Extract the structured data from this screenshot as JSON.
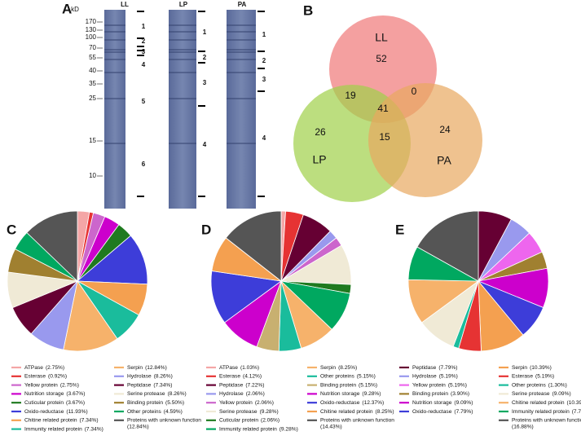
{
  "gel": {
    "panel_label": "A",
    "unit": "kD",
    "mw_markers": [
      "170",
      "130",
      "100",
      "70",
      "55",
      "40",
      "35",
      "25",
      "15",
      "10"
    ],
    "lanes": [
      {
        "name": "LL",
        "regions": [
          "1",
          "2",
          "3",
          "4",
          "5",
          "6"
        ]
      },
      {
        "name": "LP",
        "regions": [
          "1",
          "2",
          "3",
          "4"
        ]
      },
      {
        "name": "PA",
        "regions": [
          "1",
          "2",
          "3",
          "4"
        ]
      }
    ]
  },
  "venn": {
    "panel_label": "B",
    "sets": [
      "LL",
      "LP",
      "PA"
    ],
    "counts": [
      52,
      19,
      0,
      41,
      26,
      15,
      24
    ]
  },
  "chart_data": [
    {
      "type": "pie",
      "panel_label": "C",
      "categories": [
        "ATPase",
        "Esterase",
        "Yellow protein",
        "Nutrition storage",
        "Cuticular protein",
        "Oxido-reductase",
        "Chitine related protein",
        "Immunity related protein",
        "Serpin",
        "Hydrolase",
        "Peptidase",
        "Serine protease",
        "Binding protein",
        "Other proteins",
        "Proteins with unknown function"
      ],
      "values": [
        2.75,
        0.92,
        2.75,
        3.67,
        3.67,
        11.93,
        7.34,
        7.34,
        12.84,
        8.26,
        7.34,
        8.26,
        5.5,
        4.59,
        12.84
      ],
      "value_labels": [
        "(2.75%)",
        "(0.92%)",
        "(2.75%)",
        "(3.67%)",
        "(3.67%)",
        "(11.93%)",
        "(7.34%)",
        "(7.34%)",
        "(12.84%)",
        "(8.26%)",
        "(7.34%)",
        "(8.26%)",
        "(5.50%)",
        "(4.59%)",
        "(12.84%)"
      ],
      "colors": [
        "#f4a6a6",
        "#e63333",
        "#cc66cc",
        "#cc00cc",
        "#1f7a1f",
        "#3d3dd9",
        "#f4a050",
        "#1abc9c",
        "#f6b26b",
        "#9999ee",
        "#660033",
        "#f0ead6",
        "#a08030",
        "#00a860",
        "#555555"
      ]
    },
    {
      "type": "pie",
      "panel_label": "D",
      "categories": [
        "ATPase",
        "Esterase",
        "Peptidase",
        "Hydrolase",
        "Yellow protein",
        "Serine protease",
        "Cuticular protein",
        "Immunity related protein",
        "Serpin",
        "Other proteins",
        "Binding protein",
        "Nutrition storage",
        "Oxido-reductase",
        "Chitine related protein",
        "Proteins with unknown function"
      ],
      "values": [
        1.03,
        4.12,
        7.22,
        2.06,
        2.06,
        9.28,
        2.06,
        9.28,
        8.25,
        5.15,
        5.15,
        9.28,
        12.37,
        8.25,
        14.43
      ],
      "value_labels": [
        "(1.03%)",
        "(4.12%)",
        "(7.22%)",
        "(2.06%)",
        "(2.06%)",
        "(9.28%)",
        "(2.06%)",
        "(9.28%)",
        "(8.25%)",
        "(5.15%)",
        "(5.15%)",
        "(9.28%)",
        "(12.37%)",
        "(8.25%)",
        "(14.43%)"
      ],
      "colors": [
        "#f4a6a6",
        "#e63333",
        "#660033",
        "#9999ee",
        "#cc66cc",
        "#f0ead6",
        "#1f7a1f",
        "#00a860",
        "#f6b26b",
        "#1abc9c",
        "#c8b070",
        "#cc00cc",
        "#3d3dd9",
        "#f4a050",
        "#555555"
      ]
    },
    {
      "type": "pie",
      "panel_label": "E",
      "categories": [
        "Peptidase",
        "Hydrolase",
        "Yellow protein",
        "Binding protein",
        "Nutrition storage",
        "Oxido-reductase",
        "Serpin",
        "Esterase",
        "Other proteins",
        "Serine protease",
        "Chitine related protein",
        "Immunity related protein",
        "Proteins with unknown function"
      ],
      "values": [
        7.79,
        5.19,
        5.19,
        3.9,
        9.09,
        7.79,
        10.39,
        5.19,
        1.3,
        9.09,
        10.39,
        7.79,
        16.88
      ],
      "value_labels": [
        "(7.79%)",
        "(5.19%)",
        "(5.19%)",
        "(3.90%)",
        "(9.09%)",
        "(7.79%)",
        "(10.39%)",
        "(5.19%)",
        "(1.30%)",
        "(9.09%)",
        "(10.39%)",
        "(7.79%)",
        "(16.88%)"
      ],
      "colors": [
        "#660033",
        "#9999ee",
        "#ee66ee",
        "#a08030",
        "#cc00cc",
        "#3d3dd9",
        "#f4a050",
        "#e63333",
        "#1abc9c",
        "#f0ead6",
        "#f6b26b",
        "#00a860",
        "#555555"
      ]
    }
  ]
}
